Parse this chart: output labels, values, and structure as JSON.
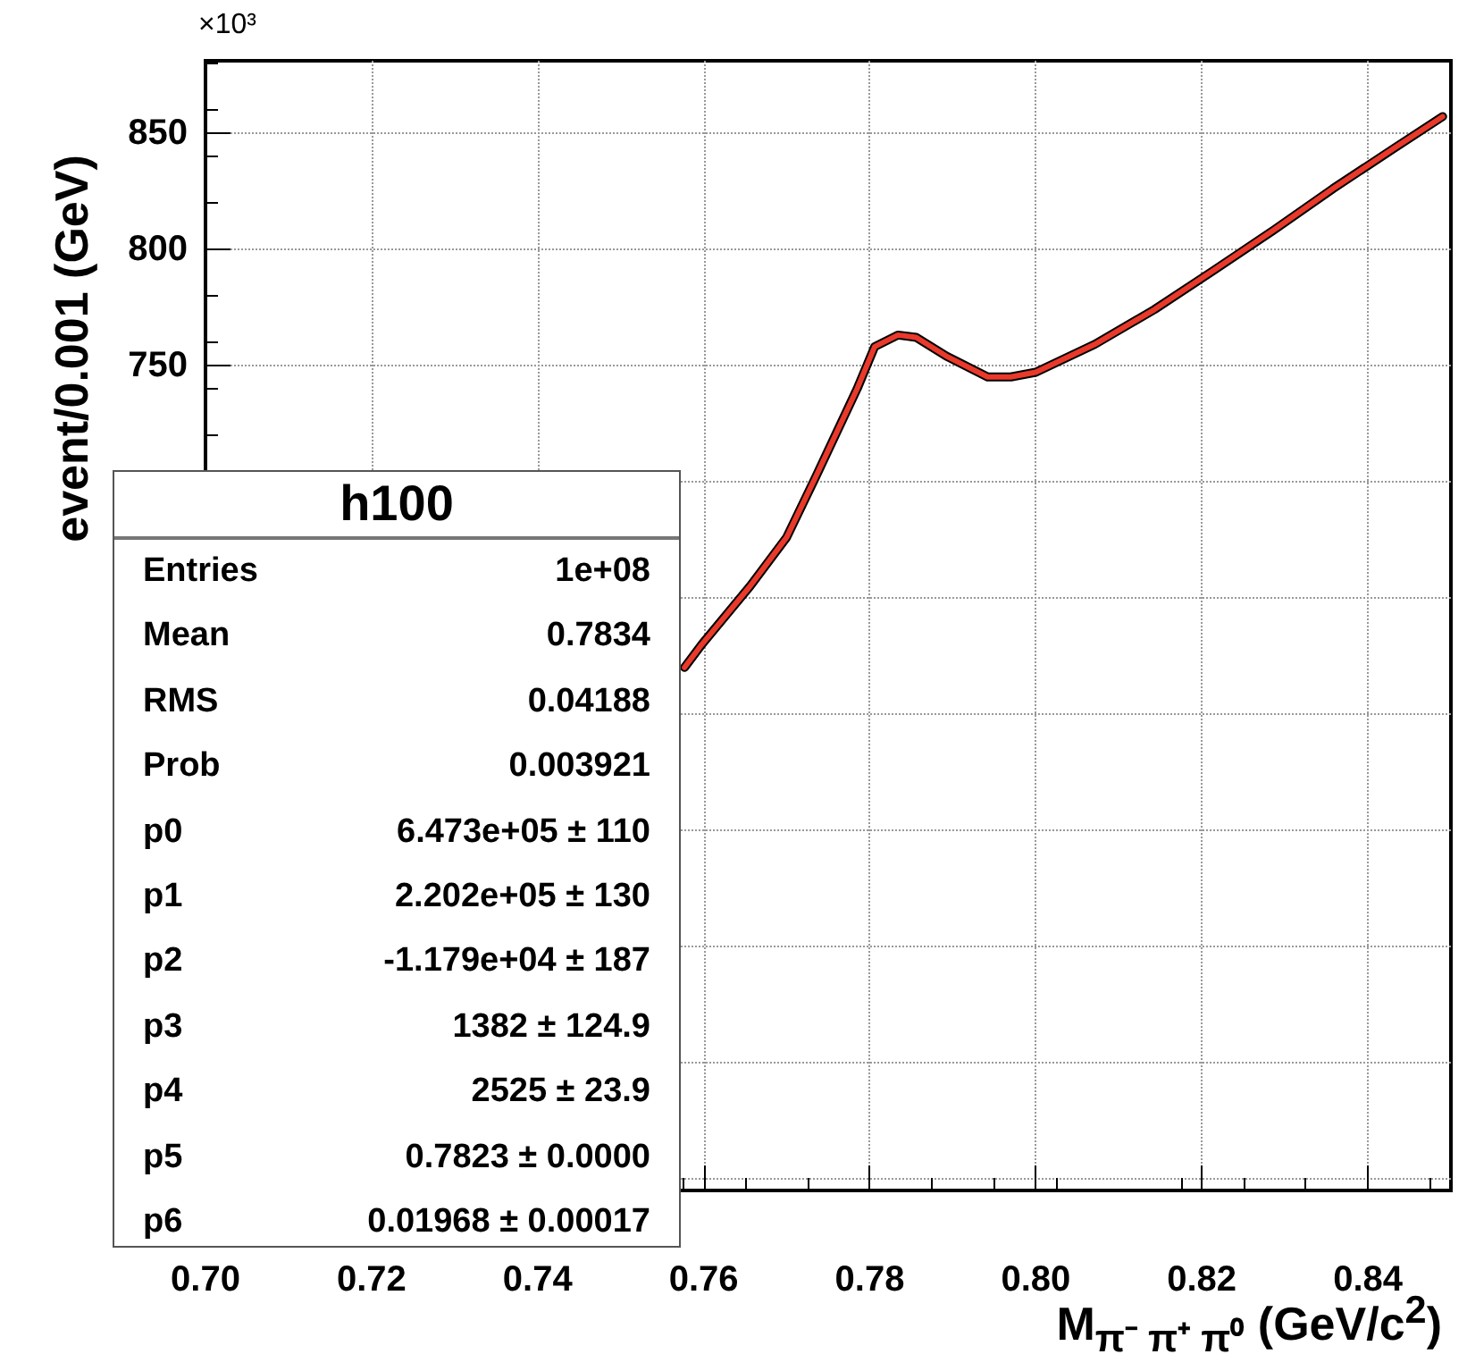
{
  "chart_data": {
    "type": "line",
    "xlabel": "M$_{π⁻ π⁺ π⁰}$ (GeV/c$^{2}$)",
    "ylabel": "event/0.001 (GeV)",
    "annotations": [
      "×10³",
      "h100",
      "Entries",
      "1e+08",
      "Mean",
      "0.7834",
      "RMS",
      "0.04188",
      "Prob",
      "0.003921",
      "p0",
      "6.473e+05 ± 110",
      "p1",
      "2.202e+05 ± 130",
      "p2",
      "-1.179e+04 ± 187",
      "p3",
      "1382 ± 124.9",
      "p4",
      "2525 ± 23.9",
      "p5",
      "0.7823 ± 0.0000",
      "p6",
      "0.01968 ± 0.00017"
    ],
    "xlim": [
      0.7,
      0.85
    ],
    "xticks": [
      {
        "value": 0.7,
        "label": "0.70"
      },
      {
        "value": 0.72,
        "label": "0.72"
      },
      {
        "value": 0.74,
        "label": "0.74"
      },
      {
        "value": 0.76,
        "label": "0.76"
      },
      {
        "value": 0.78,
        "label": "0.78"
      },
      {
        "value": 0.8,
        "label": "0.80"
      },
      {
        "value": 0.82,
        "label": "0.82"
      },
      {
        "value": 0.84,
        "label": "0.84"
      }
    ],
    "ylim": [
      395,
      881
    ],
    "yticks": [
      {
        "value": 400,
        "label": null
      },
      {
        "value": 450,
        "label": null
      },
      {
        "value": 500,
        "label": null
      },
      {
        "value": 550,
        "label": null
      },
      {
        "value": 600,
        "label": null
      },
      {
        "value": 650,
        "label": null
      },
      {
        "value": 700,
        "label": null
      },
      750,
      800,
      850
    ],
    "grid": true,
    "series": [
      {
        "type": "line",
        "color": "#000000",
        "x": [
          0.7577,
          0.7598,
          0.7656,
          0.77,
          0.7735,
          0.7785,
          0.7806,
          0.7834,
          0.7856,
          0.7892,
          0.7942,
          0.797,
          0.8,
          0.8071,
          0.8143,
          0.8215,
          0.8286,
          0.8358,
          0.843,
          0.849
        ],
        "values": [
          620,
          630,
          655,
          676,
          702,
          740,
          758,
          763,
          762,
          754,
          745,
          745,
          747,
          759,
          774,
          791,
          808,
          826,
          843,
          857
        ]
      },
      {
        "type": "line",
        "color": "#e8392b",
        "x": [
          0.7577,
          0.7598,
          0.7656,
          0.77,
          0.7735,
          0.7785,
          0.7806,
          0.7834,
          0.7856,
          0.7892,
          0.7942,
          0.797,
          0.8,
          0.8071,
          0.8143,
          0.8215,
          0.8286,
          0.8358,
          0.843,
          0.849
        ],
        "values": [
          620,
          630,
          655,
          676,
          702,
          740,
          758,
          763,
          762,
          754,
          745,
          745,
          747,
          759,
          774,
          791,
          808,
          826,
          843,
          857
        ]
      }
    ]
  }
}
